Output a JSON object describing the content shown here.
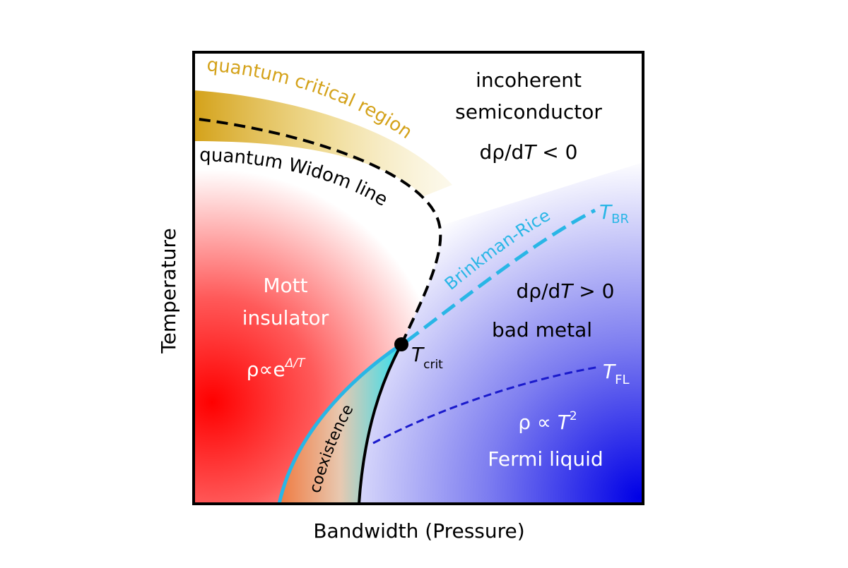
{
  "axes": {
    "y_label": "Temperature",
    "x_label": "Bandwidth (Pressure)"
  },
  "regions": {
    "incoherent": {
      "line1": "incoherent",
      "line2": "semiconductor",
      "rel": "dρ/d",
      "relT": "T",
      "relTail": " < 0"
    },
    "mott": {
      "line1": "Mott",
      "line2": "insulator",
      "rho": "ρ∝e",
      "exp": "Δ/T"
    },
    "bad_metal": {
      "rel": "dρ/d",
      "relT": "T",
      "relTail": " > 0",
      "label": "bad metal"
    },
    "fermi_liquid": {
      "rho": "ρ ∝ ",
      "T": "T",
      "exp": "2",
      "label": "Fermi liquid"
    },
    "coexistence": "coexistence",
    "quantum_critical": "quantum critical region"
  },
  "lines": {
    "widom": "quantum Widom line",
    "brinkman_rice": "Brinkman-Rice",
    "t_br": {
      "T": "T",
      "sub": "BR"
    },
    "t_crit": {
      "T": "T",
      "sub": "crit"
    },
    "t_fl": {
      "T": "T",
      "sub": "FL"
    }
  },
  "colors": {
    "insulator": "#ff0000",
    "metal": "#0000ee",
    "quantum_critical": "#d4a21a",
    "brinkman_rice": "#29b6e6",
    "fermi_liquid_line": "#1a1acc"
  }
}
